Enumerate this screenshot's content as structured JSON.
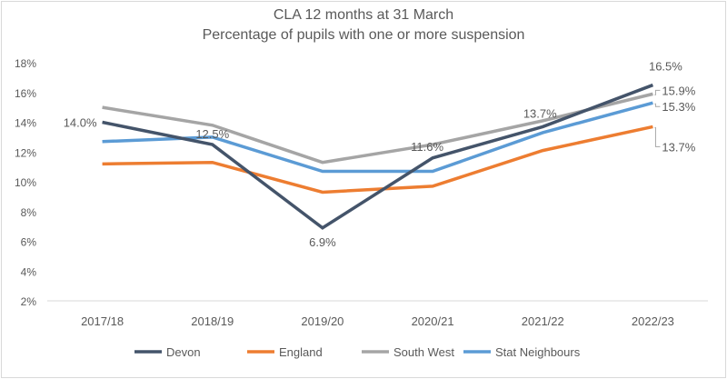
{
  "chart_data": {
    "type": "line",
    "title": "CLA 12 months at 31 March",
    "subtitle": "Percentage of pupils with one or more suspension",
    "xlabel": "",
    "ylabel": "",
    "categories": [
      "2017/18",
      "2018/19",
      "2019/20",
      "2020/21",
      "2021/22",
      "2022/23"
    ],
    "ylim": [
      2,
      18
    ],
    "yticks": [
      "2%",
      "4%",
      "6%",
      "8%",
      "10%",
      "12%",
      "14%",
      "16%",
      "18%"
    ],
    "ytick_values": [
      2,
      4,
      6,
      8,
      10,
      12,
      14,
      16,
      18
    ],
    "grid": false,
    "legend": "bottom",
    "series": [
      {
        "name": "Devon",
        "color": "#44546A",
        "values": [
          14.0,
          12.5,
          6.9,
          11.6,
          13.7,
          16.5
        ],
        "labels": [
          "14.0%",
          "12.5%",
          "6.9%",
          "11.6%",
          "13.7%",
          "16.5%"
        ]
      },
      {
        "name": "England",
        "color": "#ED7D31",
        "values": [
          11.2,
          11.3,
          9.3,
          9.7,
          12.1,
          13.7
        ],
        "labels": [
          "",
          "",
          "",
          "",
          "",
          "13.7%"
        ]
      },
      {
        "name": "South West",
        "color": "#A5A5A5",
        "values": [
          15.0,
          13.8,
          11.3,
          12.5,
          14.1,
          15.9
        ],
        "labels": [
          "",
          "",
          "",
          "",
          "",
          "15.9%"
        ]
      },
      {
        "name": "Stat Neighbours",
        "color": "#5B9BD5",
        "values": [
          12.7,
          13.0,
          10.7,
          10.7,
          13.3,
          15.3
        ],
        "labels": [
          "",
          "",
          "",
          "",
          "",
          "15.3%"
        ]
      }
    ]
  }
}
